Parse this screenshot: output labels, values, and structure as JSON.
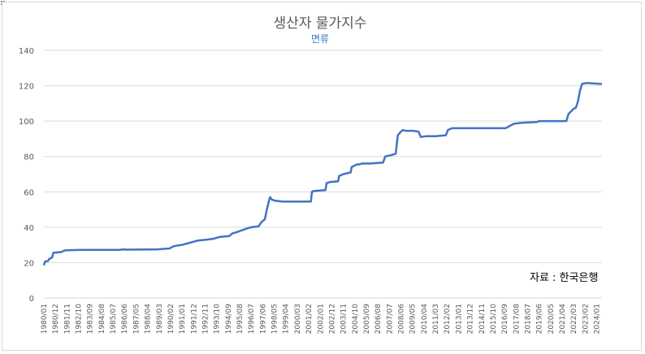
{
  "chart_data": {
    "type": "line",
    "title": "생산자 물가지수",
    "subtitle": "면류",
    "source_note": "자료 : 한국은행",
    "ylim": [
      0,
      140
    ],
    "yticks": [
      0,
      20,
      40,
      60,
      80,
      100,
      120,
      140
    ],
    "grid": true,
    "line_color": "#4472c4",
    "x_tick_labels": [
      "1980/01",
      "1980/12",
      "1981/11",
      "1982/10",
      "1983/09",
      "1984/08",
      "1985/07",
      "1986/06",
      "1987/05",
      "1988/04",
      "1989/03",
      "1990/02",
      "1991/01",
      "1991/12",
      "1992/11",
      "1993/10",
      "1994/09",
      "1995/08",
      "1996/07",
      "1997/06",
      "1998/05",
      "1999/04",
      "2000/03",
      "2001/02",
      "2002/01",
      "2002/12",
      "2003/11",
      "2004/10",
      "2005/09",
      "2006/08",
      "2007/07",
      "2008/06",
      "2009/05",
      "2010/04",
      "2011/03",
      "2012/02",
      "2013/01",
      "2013/12",
      "2014/11",
      "2015/10",
      "2016/09",
      "2017/08",
      "2018/07",
      "2019/06",
      "2020/05",
      "2021/04",
      "2022/03",
      "2023/02",
      "2024/01"
    ],
    "series": [
      {
        "x": [
          "1980/01",
          "1980/02",
          "1980/05",
          "1980/06",
          "1980/09",
          "1980/10",
          "1981/06",
          "1981/07",
          "1981/10",
          "1983/01",
          "1986/01",
          "1986/06",
          "1986/07",
          "1989/01",
          "1990/01",
          "1990/04",
          "1990/07",
          "1991/01",
          "1991/10",
          "1992/04",
          "1993/01",
          "1993/07",
          "1994/01",
          "1994/10",
          "1995/01",
          "1995/04",
          "1996/04",
          "1996/07",
          "1997/02",
          "1997/05",
          "1997/08",
          "1997/10",
          "1997/12",
          "1998/01",
          "1998/03",
          "1998/06",
          "1999/01",
          "1999/04",
          "2001/04",
          "2001/05",
          "2001/07",
          "2002/06",
          "2002/07",
          "2002/10",
          "2003/06",
          "2003/07",
          "2003/11",
          "2004/06",
          "2004/07",
          "2004/12",
          "2005/02",
          "2005/05",
          "2005/12",
          "2006/01",
          "2007/01",
          "2007/03",
          "2007/07",
          "2008/01",
          "2008/03",
          "2008/06",
          "2008/08",
          "2008/10",
          "2009/06",
          "2009/11",
          "2010/01",
          "2010/06",
          "2011/03",
          "2012/01",
          "2012/03",
          "2012/07",
          "2013/01",
          "2016/10",
          "2017/06",
          "2018/01",
          "2019/04",
          "2019/06",
          "2021/06",
          "2021/08",
          "2021/10",
          "2022/03",
          "2022/05",
          "2022/07",
          "2022/09",
          "2022/11",
          "2023/03",
          "2024/06"
        ],
        "values": [
          18.5,
          20.5,
          21,
          22,
          23,
          25.5,
          26,
          26.5,
          27,
          27.2,
          27.2,
          27.5,
          27.3,
          27.5,
          28,
          29,
          29.5,
          30,
          31.5,
          32.5,
          33,
          33.5,
          34.5,
          35,
          36.5,
          37,
          39.5,
          40,
          40.5,
          43,
          44.5,
          50,
          55,
          57,
          55.5,
          55,
          54.5,
          54.5,
          54.5,
          60,
          60.5,
          61,
          65,
          65.5,
          66,
          69,
          70,
          71,
          74,
          75.5,
          75.5,
          76,
          76,
          76,
          76.5,
          80,
          80.5,
          81.5,
          92,
          94,
          95,
          94.5,
          94.5,
          94,
          91,
          91.5,
          91.5,
          92,
          95,
          96,
          96,
          96,
          98.5,
          99,
          99.5,
          100,
          100,
          100,
          104,
          107,
          107.5,
          111,
          117,
          121,
          121.5,
          121
        ]
      }
    ]
  }
}
